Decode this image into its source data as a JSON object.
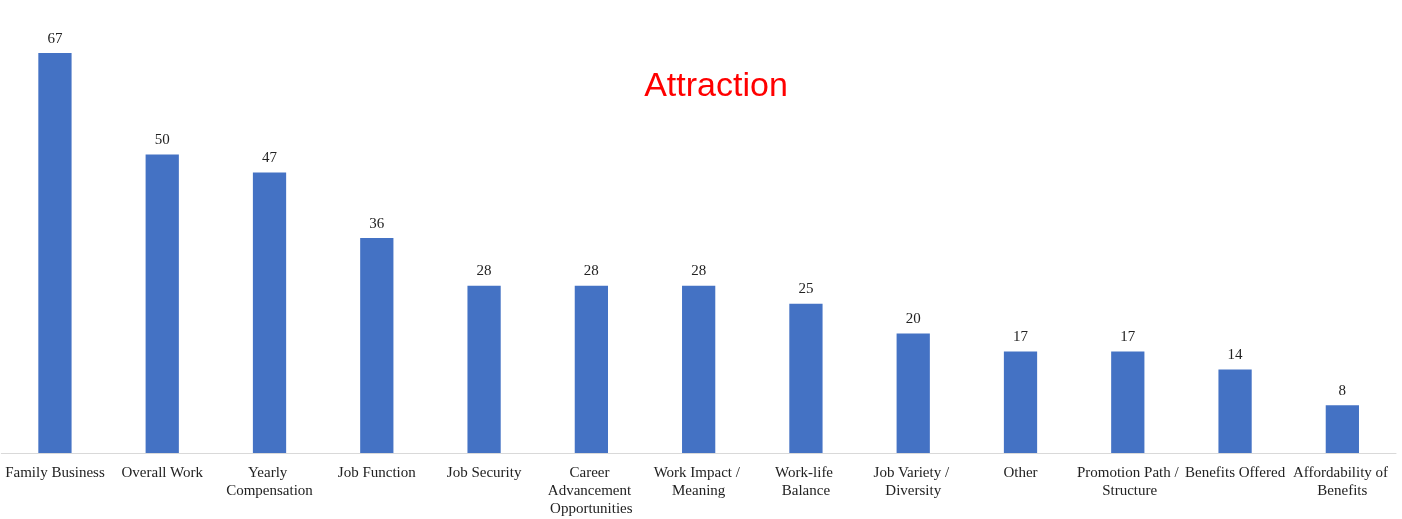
{
  "chart_data": {
    "type": "bar",
    "title": "Attraction",
    "categories": [
      "Family Business",
      "Overall Work",
      "Yearly Compensation",
      "Job Function",
      "Job Security",
      "Career Advancement Opportunities",
      "Work Impact / Meaning",
      "Work-life Balance",
      "Job Variety / Diversity",
      "Other",
      "Promotion Path / Structure",
      "Benefits Offered",
      "Affordability of Benefits"
    ],
    "values": [
      67,
      50,
      47,
      36,
      28,
      28,
      28,
      25,
      20,
      17,
      17,
      14,
      8
    ],
    "color": "#4472c4",
    "data_labels": true
  }
}
